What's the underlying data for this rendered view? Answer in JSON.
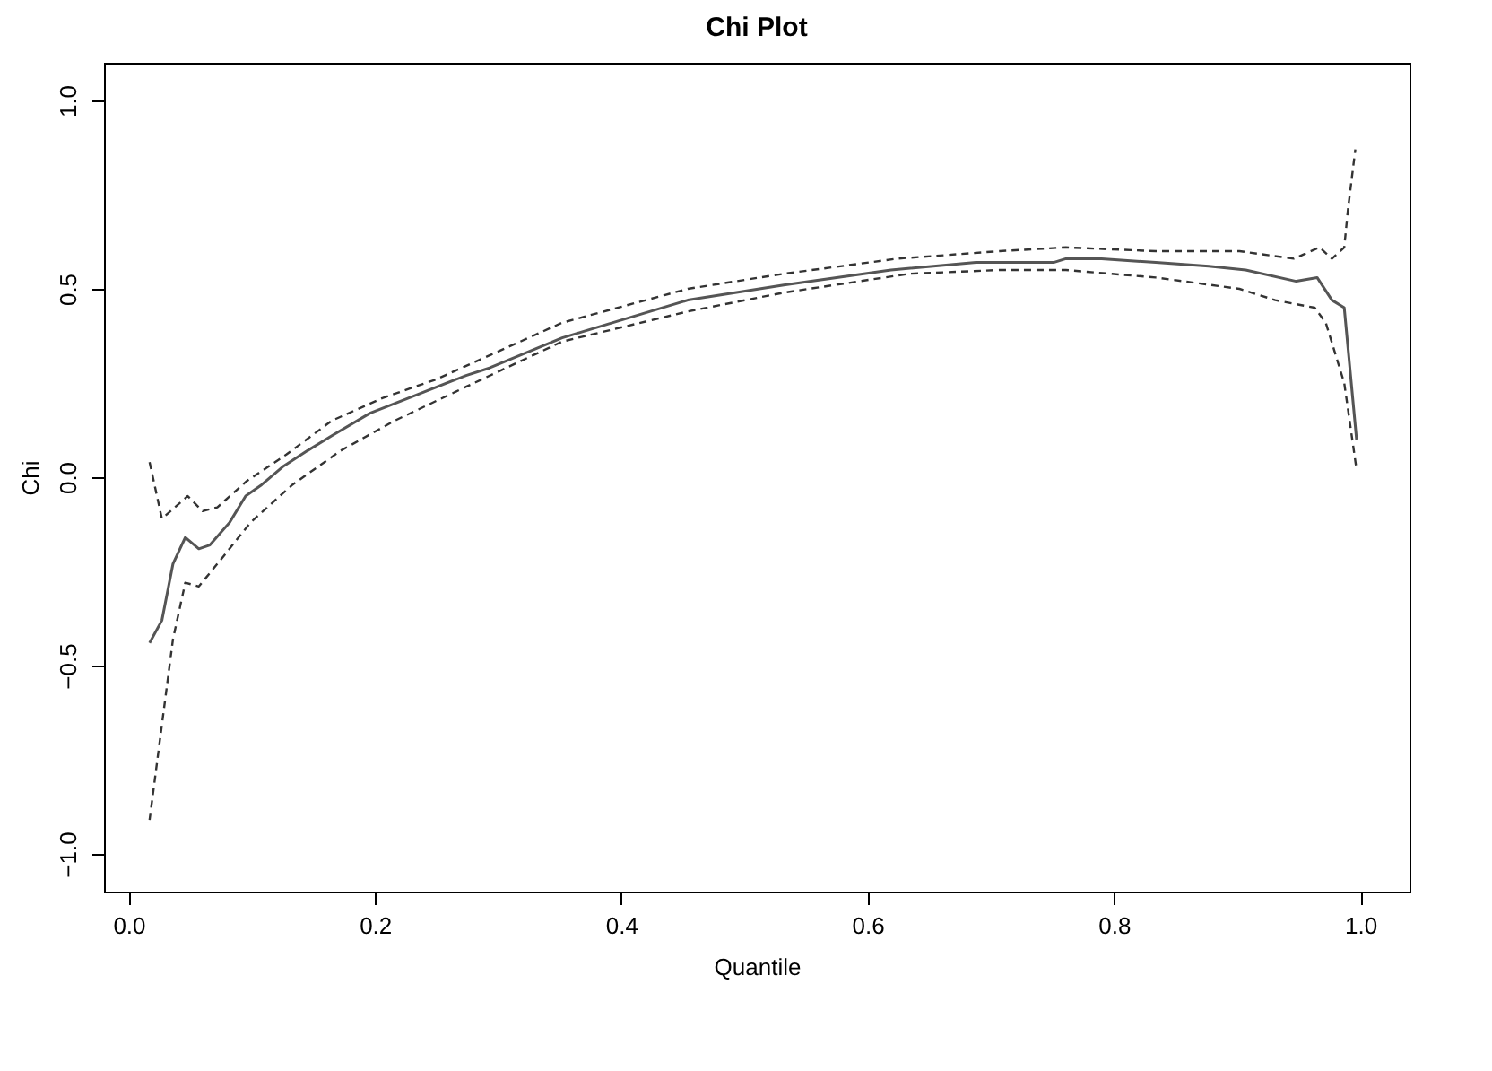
{
  "chart_data": {
    "type": "line",
    "title": "Chi Plot",
    "xlabel": "Quantile",
    "ylabel": "Chi",
    "xlim": [
      -0.02,
      1.04
    ],
    "ylim": [
      -1.1,
      1.1
    ],
    "xticks": [
      {
        "value": 0,
        "label": "0.0"
      },
      0.2,
      0.4,
      0.6,
      0.8,
      {
        "value": 1,
        "label": "1.0"
      }
    ],
    "yticks": [
      {
        "value": -1,
        "label": "−1.0"
      },
      {
        "value": -0.5,
        "label": "−0.5"
      },
      {
        "value": 0,
        "label": "0.0"
      },
      0.5,
      {
        "value": 1,
        "label": "1.0"
      }
    ],
    "grid": false,
    "series": [
      {
        "color": "#555555",
        "line_style": "solid",
        "x": [
          0.017,
          0.027,
          0.036,
          0.046,
          0.057,
          0.066,
          0.082,
          0.095,
          0.108,
          0.126,
          0.145,
          0.165,
          0.196,
          0.235,
          0.274,
          0.293,
          0.352,
          0.454,
          0.532,
          0.619,
          0.688,
          0.751,
          0.761,
          0.79,
          0.834,
          0.877,
          0.907,
          0.948,
          0.965,
          0.977,
          0.987,
          0.997
        ],
        "values": [
          -0.44,
          -0.38,
          -0.23,
          -0.16,
          -0.19,
          -0.18,
          -0.12,
          -0.05,
          -0.02,
          0.03,
          0.07,
          0.11,
          0.17,
          0.22,
          0.27,
          0.29,
          0.37,
          0.47,
          0.51,
          0.55,
          0.57,
          0.57,
          0.58,
          0.58,
          0.57,
          0.56,
          0.55,
          0.52,
          0.53,
          0.47,
          0.45,
          0.1
        ]
      },
      {
        "color": "#333333",
        "line_style": "dashed",
        "x": [
          0.017,
          0.027,
          0.048,
          0.06,
          0.072,
          0.096,
          0.128,
          0.165,
          0.206,
          0.25,
          0.352,
          0.454,
          0.532,
          0.624,
          0.707,
          0.761,
          0.834,
          0.902,
          0.946,
          0.967,
          0.977,
          0.987,
          0.99,
          0.996
        ],
        "values": [
          0.04,
          -0.11,
          -0.05,
          -0.09,
          -0.08,
          -0.01,
          0.06,
          0.15,
          0.21,
          0.26,
          0.41,
          0.5,
          0.54,
          0.58,
          0.6,
          0.61,
          0.6,
          0.6,
          0.58,
          0.61,
          0.58,
          0.61,
          0.71,
          0.87
        ]
      },
      {
        "color": "#333333",
        "line_style": "dashed",
        "x": [
          0.017,
          0.036,
          0.046,
          0.057,
          0.077,
          0.099,
          0.133,
          0.172,
          0.216,
          0.274,
          0.352,
          0.454,
          0.532,
          0.634,
          0.707,
          0.761,
          0.834,
          0.902,
          0.931,
          0.963,
          0.972,
          0.987,
          0.997
        ],
        "values": [
          -0.91,
          -0.43,
          -0.28,
          -0.29,
          -0.21,
          -0.12,
          -0.02,
          0.07,
          0.15,
          0.24,
          0.36,
          0.44,
          0.49,
          0.54,
          0.55,
          0.55,
          0.53,
          0.5,
          0.47,
          0.45,
          0.41,
          0.25,
          0.02
        ]
      }
    ]
  }
}
